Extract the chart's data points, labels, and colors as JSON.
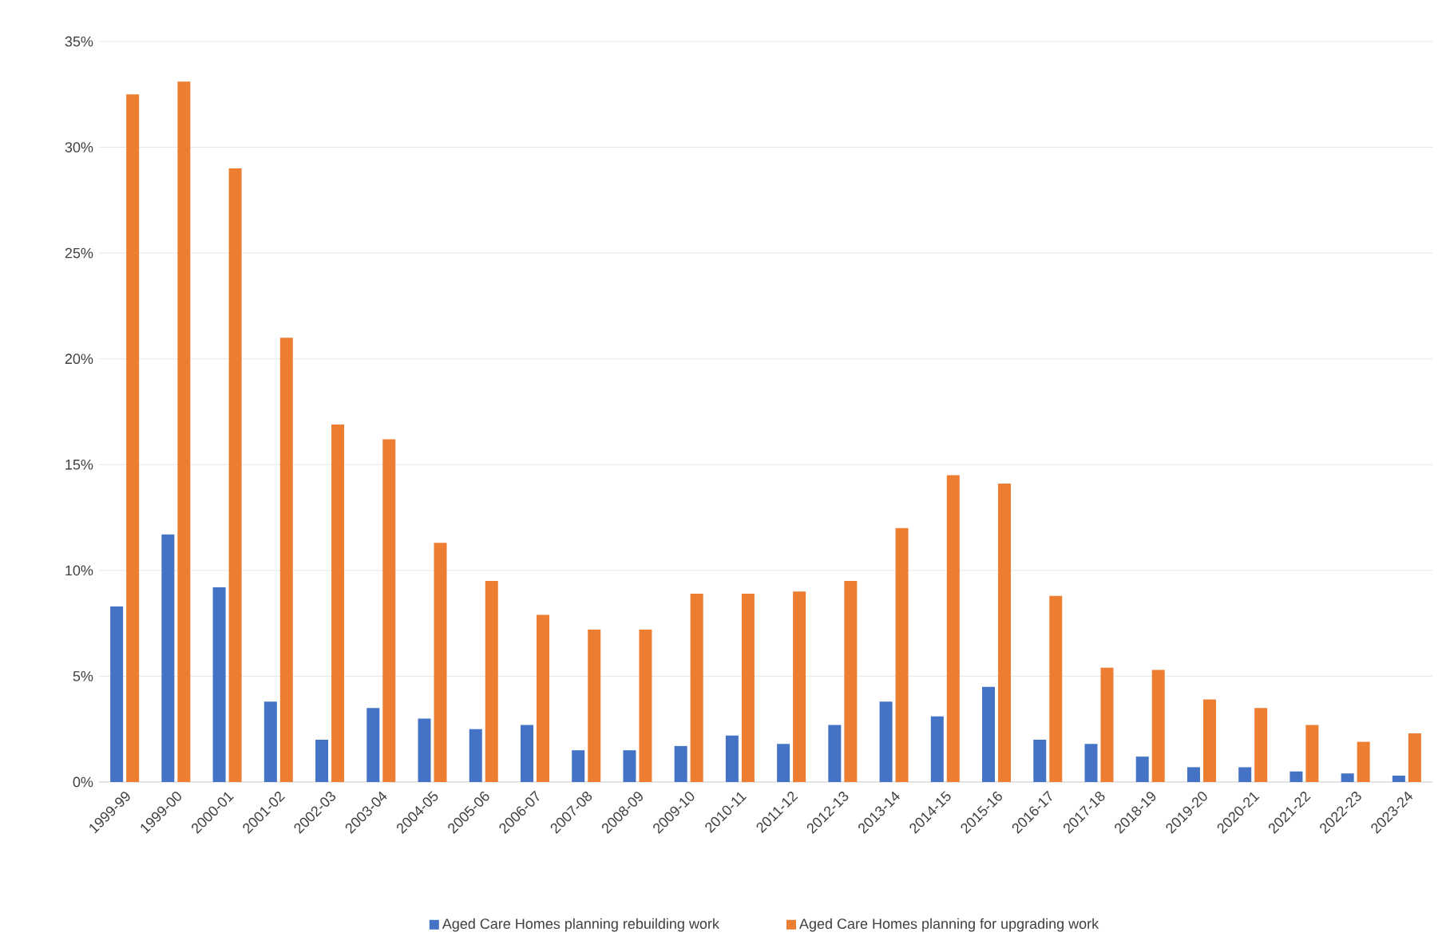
{
  "chart_data": {
    "type": "bar",
    "categories": [
      "1999-99",
      "1999-00",
      "2000-01",
      "2001-02",
      "2002-03",
      "2003-04",
      "2004-05",
      "2005-06",
      "2006-07",
      "2007-08",
      "2008-09",
      "2009-10",
      "2010-11",
      "2011-12",
      "2012-13",
      "2013-14",
      "2014-15",
      "2015-16",
      "2016-17",
      "2017-18",
      "2018-19",
      "2019-20",
      "2020-21",
      "2021-22",
      "2022-23",
      "2023-24"
    ],
    "series": [
      {
        "name": "Aged Care Homes planning rebuilding work",
        "color": "#4472c4",
        "values": [
          8.3,
          11.7,
          9.2,
          3.8,
          2.0,
          3.5,
          3.0,
          2.5,
          2.7,
          1.5,
          1.5,
          1.7,
          2.2,
          1.8,
          2.7,
          3.8,
          3.1,
          4.5,
          2.0,
          1.8,
          1.2,
          0.7,
          0.7,
          0.5,
          0.4,
          0.3
        ]
      },
      {
        "name": "Aged Care Homes planning for upgrading work",
        "color": "#ed7d31",
        "values": [
          32.5,
          33.1,
          29.0,
          21.0,
          16.9,
          16.2,
          11.3,
          9.5,
          7.9,
          7.2,
          7.2,
          8.9,
          8.9,
          9.0,
          9.5,
          12.0,
          14.5,
          14.1,
          8.8,
          5.4,
          5.3,
          3.9,
          3.5,
          2.7,
          1.9,
          2.3
        ]
      }
    ],
    "ylim": [
      0,
      35
    ],
    "yticks": [
      {
        "value": 0,
        "label": "0%"
      },
      {
        "value": 5,
        "label": "5%"
      },
      {
        "value": 10,
        "label": "10%"
      },
      {
        "value": 15,
        "label": "15%"
      },
      {
        "value": 20,
        "label": "20%"
      },
      {
        "value": 25,
        "label": "25%"
      },
      {
        "value": 30,
        "label": "30%"
      },
      {
        "value": 35,
        "label": "35%"
      }
    ],
    "grid": "y",
    "legend": "bottom"
  }
}
